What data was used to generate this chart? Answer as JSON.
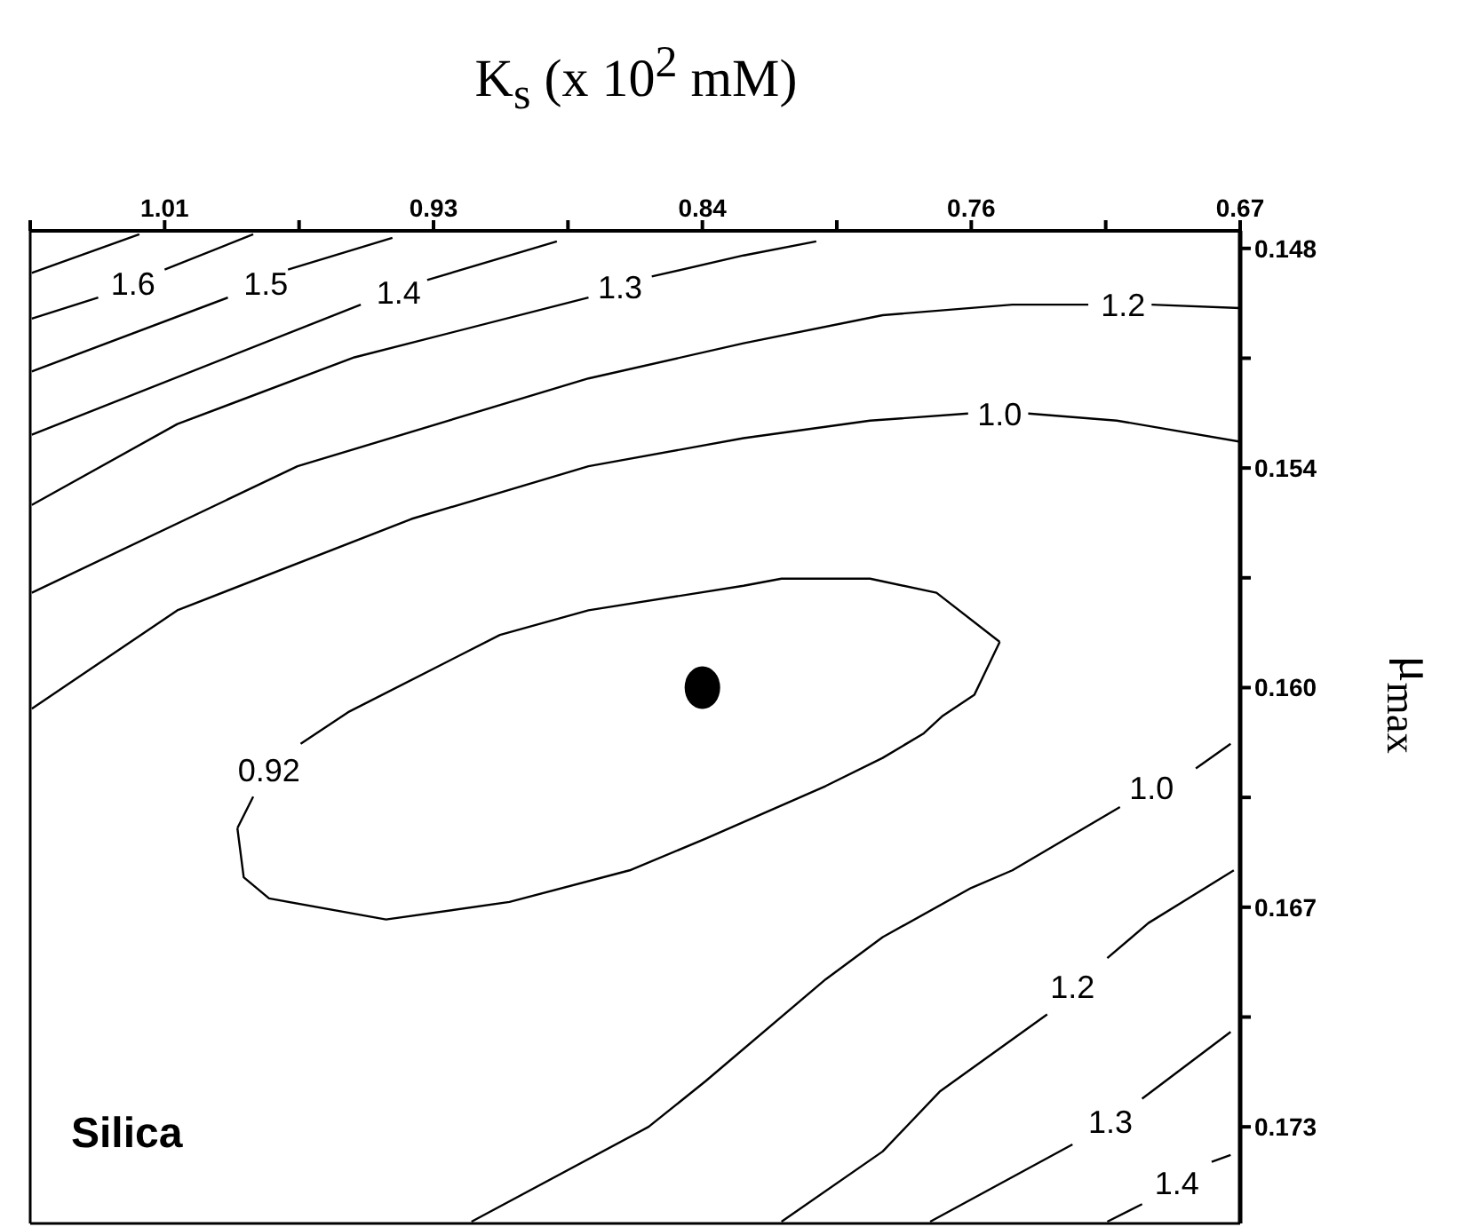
{
  "chart_data": {
    "type": "line",
    "xlabel": "K$_{s}$ (x 10$^{2}$ mM)",
    "ylabel": "μ$_{max}$",
    "xlim": [
      1.0525,
      0.67
    ],
    "xticks": [
      {
        "value": 1.0525,
        "label": null
      },
      1.01,
      {
        "value": 0.9675,
        "label": null
      },
      {
        "value": 0.925,
        "label": "0.93"
      },
      {
        "value": 0.8825,
        "label": null
      },
      0.84,
      {
        "value": 0.7975,
        "label": null
      },
      {
        "value": 0.755,
        "label": "0.76"
      },
      {
        "value": 0.7125,
        "label": null
      },
      0.67
    ],
    "ylim": [
      0.17575,
      0.1475
    ],
    "yticks": [
      0.148,
      {
        "value": 0.151125,
        "label": null
      },
      {
        "value": 0.15425,
        "label": "0.154"
      },
      {
        "value": 0.157375,
        "label": null
      },
      {
        "value": 0.1605,
        "label": "0.160"
      },
      {
        "value": 0.163625,
        "label": null
      },
      {
        "value": 0.16675,
        "label": "0.167"
      },
      {
        "value": 0.169875,
        "label": null
      },
      0.173
    ],
    "grid": false,
    "marker": "none",
    "line_style": "solid",
    "series": [
      {
        "color": "#000000",
        "x": [
          1.052,
          1.018
        ],
        "values": [
          0.1487,
          0.1476
        ]
      },
      {
        "name": "1.6",
        "color": "#000000",
        "x": [
          1.052,
          1.031,
          1.02,
          1.01,
          0.982
        ],
        "values": [
          0.15,
          0.1494,
          null,
          0.1486,
          0.1476
        ]
      },
      {
        "name": "1.5",
        "color": "#000000",
        "x": [
          1.052,
          0.99,
          0.978,
          0.971,
          0.938
        ],
        "values": [
          0.1515,
          0.1494,
          null,
          0.1486,
          0.1477
        ]
      },
      {
        "name": "1.4",
        "color": "#000000",
        "x": [
          1.052,
          0.948,
          0.936,
          0.927,
          0.886
        ],
        "values": [
          0.1533,
          0.1496,
          null,
          0.1489,
          0.1478
        ]
      },
      {
        "name": "1.3",
        "color": "#000000",
        "x": [
          1.052,
          1.006,
          0.95,
          0.876,
          0.866,
          0.856,
          0.827,
          0.804
        ],
        "values": [
          0.1553,
          0.153,
          0.1511,
          0.1494,
          null,
          0.1488,
          0.1482,
          0.1478
        ]
      },
      {
        "name": "1.2",
        "color": "#000000",
        "x": [
          1.052,
          0.968,
          0.876,
          0.827,
          0.783,
          0.742,
          0.718,
          0.707,
          0.698,
          0.67
        ],
        "values": [
          0.1578,
          0.1542,
          0.1517,
          0.1507,
          0.1499,
          0.1496,
          0.1496,
          null,
          0.1496,
          0.1497
        ]
      },
      {
        "name": "1.0",
        "color": "#000000",
        "x": [
          1.052,
          1.006,
          0.932,
          0.876,
          0.827,
          0.787,
          0.756,
          0.746,
          0.737,
          0.709,
          0.67
        ],
        "values": [
          0.1611,
          0.1583,
          0.1557,
          0.1542,
          0.1534,
          0.1529,
          0.1527,
          null,
          0.1527,
          0.1529,
          0.1535
        ]
      },
      {
        "name": "0.92",
        "color": "#000000",
        "x": [
          0.987,
          0.982,
          0.977,
          0.967,
          0.952,
          0.904,
          0.876,
          0.827,
          0.815,
          0.787,
          0.766,
          0.746
        ],
        "values": [
          0.1645,
          0.1636,
          null,
          0.1621,
          0.1612,
          0.159,
          0.1583,
          0.1576,
          0.1574,
          0.1574,
          0.1578,
          0.1592
        ]
      },
      {
        "color": "#000000",
        "x": [
          0.746,
          0.754,
          0.764,
          0.77,
          0.783,
          0.801,
          0.839,
          0.863,
          0.901,
          0.94,
          0.977,
          0.985,
          0.987
        ],
        "values": [
          0.1592,
          0.1607,
          0.1613,
          0.1618,
          0.1625,
          0.1633,
          0.1648,
          0.1657,
          0.1666,
          0.1671,
          0.1665,
          0.1659,
          0.1645
        ]
      },
      {
        "name": "1.0",
        "color": "#000000",
        "x": [
          0.913,
          0.857,
          0.839,
          0.801,
          0.783,
          0.755,
          0.742,
          0.708,
          0.698,
          0.684,
          0.673
        ],
        "values": [
          0.1757,
          0.173,
          0.1717,
          0.1688,
          0.1676,
          0.1662,
          0.1657,
          0.1639,
          null,
          0.1628,
          0.1621
        ]
      },
      {
        "name": "1.2",
        "color": "#000000",
        "x": [
          0.815,
          0.783,
          0.765,
          0.731,
          0.723,
          0.712,
          0.699,
          0.672
        ],
        "values": [
          0.1757,
          0.1737,
          0.172,
          0.1698,
          null,
          0.1682,
          0.1672,
          0.1657
        ]
      },
      {
        "name": "1.3",
        "color": "#000000",
        "x": [
          0.768,
          0.723,
          0.711,
          0.701,
          0.673
        ],
        "values": [
          0.1757,
          0.1735,
          null,
          0.1722,
          0.1703
        ]
      },
      {
        "name": "1.4",
        "color": "#000000",
        "x": [
          0.712,
          0.701,
          0.69,
          0.679,
          0.673
        ],
        "values": [
          0.1757,
          0.1752,
          null,
          0.174,
          0.1738
        ]
      },
      {
        "type": "scatter",
        "marker": "circle",
        "color": "#000000",
        "x": [
          0.84
        ],
        "values": [
          0.1605
        ]
      }
    ],
    "annotations": [
      "Silica"
    ]
  }
}
